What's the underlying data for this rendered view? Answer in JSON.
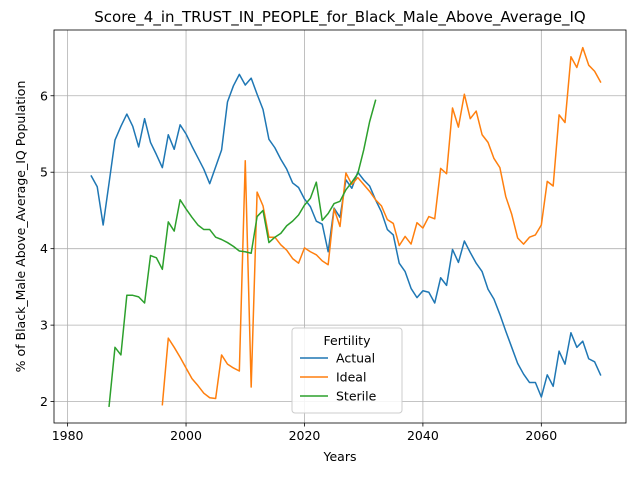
{
  "chart_data": {
    "type": "line",
    "title": "Score_4_in_TRUST_IN_PEOPLE_for_Black_Male_Above_Average_IQ",
    "xlabel": "Years",
    "ylabel": "% of Black_Male Above_Average_IQ Population",
    "xlim": [
      1977.7,
      2074.3
    ],
    "ylim": [
      1.72,
      6.86
    ],
    "xticks": [
      1980,
      2000,
      2020,
      2040,
      2060
    ],
    "yticks": [
      2,
      3,
      4,
      5,
      6
    ],
    "grid": true,
    "legend": {
      "title": "Fertility",
      "position": "lower-center"
    },
    "series": [
      {
        "name": "Actual",
        "color": "#1f77b4",
        "x": [
          1984,
          1985,
          1986,
          1987,
          1988,
          1989,
          1990,
          1991,
          1992,
          1993,
          1994,
          1995,
          1996,
          1997,
          1998,
          1999,
          2000,
          2001,
          2002,
          2003,
          2004,
          2005,
          2006,
          2007,
          2008,
          2009,
          2010,
          2011,
          2012,
          2013,
          2014,
          2015,
          2016,
          2017,
          2018,
          2019,
          2020,
          2021,
          2022,
          2023,
          2024,
          2025,
          2026,
          2027,
          2028,
          2029,
          2030,
          2031,
          2032,
          2033,
          2034,
          2035,
          2036,
          2037,
          2038,
          2039,
          2040,
          2041,
          2042,
          2043,
          2044,
          2045,
          2046,
          2047,
          2048,
          2049,
          2050,
          2051,
          2052,
          2053,
          2054,
          2055,
          2056,
          2057,
          2058,
          2059,
          2060,
          2061,
          2062,
          2063,
          2064,
          2065,
          2066,
          2067,
          2068,
          2069,
          2070
        ],
        "y": [
          4.95,
          4.81,
          4.31,
          4.86,
          5.42,
          5.6,
          5.76,
          5.6,
          5.33,
          5.7,
          5.39,
          5.23,
          5.06,
          5.49,
          5.3,
          5.62,
          5.5,
          5.34,
          5.19,
          5.04,
          4.85,
          5.07,
          5.29,
          5.92,
          6.13,
          6.28,
          6.14,
          6.23,
          6.02,
          5.82,
          5.43,
          5.32,
          5.17,
          5.04,
          4.86,
          4.8,
          4.65,
          4.55,
          4.36,
          4.32,
          3.96,
          4.53,
          4.41,
          4.9,
          4.79,
          5.0,
          4.9,
          4.82,
          4.64,
          4.48,
          4.25,
          4.18,
          3.81,
          3.7,
          3.48,
          3.36,
          3.45,
          3.43,
          3.29,
          3.62,
          3.52,
          3.99,
          3.82,
          4.1,
          3.95,
          3.81,
          3.7,
          3.47,
          3.34,
          3.14,
          2.92,
          2.71,
          2.5,
          2.36,
          2.25,
          2.25,
          2.06,
          2.35,
          2.2,
          2.66,
          2.49,
          2.9,
          2.71,
          2.79,
          2.56,
          2.52,
          2.35
        ]
      },
      {
        "name": "Ideal",
        "color": "#ff7f0e",
        "x": [
          1996,
          1997,
          1998,
          1999,
          2000,
          2001,
          2002,
          2003,
          2004,
          2005,
          2006,
          2007,
          2008,
          2009,
          2010,
          2011,
          2012,
          2013,
          2014,
          2015,
          2016,
          2017,
          2018,
          2019,
          2020,
          2021,
          2022,
          2023,
          2024,
          2025,
          2026,
          2027,
          2028,
          2029,
          2030,
          2031,
          2032,
          2033,
          2034,
          2035,
          2036,
          2037,
          2038,
          2039,
          2040,
          2041,
          2042,
          2043,
          2044,
          2045,
          2046,
          2047,
          2048,
          2049,
          2050,
          2051,
          2052,
          2053,
          2054,
          2055,
          2056,
          2057,
          2058,
          2059,
          2060,
          2061,
          2062,
          2063,
          2064,
          2065,
          2066,
          2067,
          2068,
          2069,
          2070
        ],
        "y": [
          1.96,
          2.83,
          2.71,
          2.58,
          2.44,
          2.3,
          2.21,
          2.11,
          2.05,
          2.04,
          2.61,
          2.49,
          2.44,
          2.4,
          5.15,
          2.19,
          4.74,
          4.56,
          4.15,
          4.15,
          4.05,
          3.98,
          3.87,
          3.81,
          4.01,
          3.96,
          3.92,
          3.84,
          3.79,
          4.52,
          4.29,
          4.99,
          4.84,
          4.93,
          4.84,
          4.75,
          4.64,
          4.56,
          4.38,
          4.33,
          4.04,
          4.16,
          4.06,
          4.34,
          4.27,
          4.42,
          4.39,
          5.05,
          4.98,
          5.84,
          5.59,
          6.02,
          5.7,
          5.8,
          5.49,
          5.39,
          5.18,
          5.06,
          4.68,
          4.45,
          4.14,
          4.06,
          4.15,
          4.18,
          4.31,
          4.88,
          4.82,
          5.75,
          5.65,
          6.51,
          6.37,
          6.63,
          6.4,
          6.32,
          6.18
        ]
      },
      {
        "name": "Sterile",
        "color": "#2ca02c",
        "x": [
          1987,
          1988,
          1989,
          1990,
          1991,
          1992,
          1993,
          1994,
          1995,
          1996,
          1997,
          1998,
          1999,
          2000,
          2001,
          2002,
          2003,
          2004,
          2005,
          2006,
          2007,
          2008,
          2009,
          2010,
          2011,
          2012,
          2013,
          2014,
          2015,
          2016,
          2017,
          2018,
          2019,
          2020,
          2021,
          2022,
          2023,
          2024,
          2025,
          2026,
          2027,
          2028,
          2029,
          2030,
          2031,
          2032
        ],
        "y": [
          1.94,
          2.71,
          2.61,
          3.39,
          3.39,
          3.37,
          3.29,
          3.91,
          3.88,
          3.73,
          4.35,
          4.23,
          4.64,
          4.52,
          4.41,
          4.31,
          4.25,
          4.25,
          4.15,
          4.12,
          4.08,
          4.03,
          3.97,
          3.96,
          3.94,
          4.42,
          4.5,
          4.08,
          4.15,
          4.2,
          4.3,
          4.36,
          4.44,
          4.57,
          4.66,
          4.87,
          4.37,
          4.46,
          4.59,
          4.62,
          4.77,
          4.87,
          4.98,
          5.29,
          5.66,
          5.94
        ]
      }
    ]
  }
}
